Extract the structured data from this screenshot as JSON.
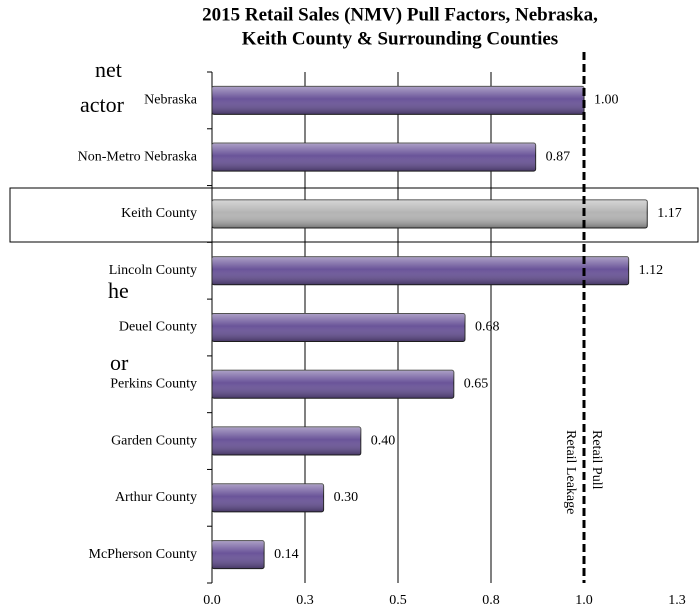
{
  "chart_data": {
    "type": "bar",
    "orientation": "horizontal",
    "title": [
      "2015 Retail Sales (NMV) Pull Factors, Nebraska,",
      "Keith County & Surrounding Counties"
    ],
    "categories": [
      "Nebraska",
      "Non-Metro Nebraska",
      "Keith County",
      "Lincoln County",
      "Deuel County",
      "Perkins County",
      "Garden County",
      "Arthur County",
      "McPherson County"
    ],
    "values": [
      1.0,
      0.87,
      1.17,
      1.12,
      0.68,
      0.65,
      0.4,
      0.3,
      0.14
    ],
    "value_labels": [
      "1.00",
      "0.87",
      "1.17",
      "1.12",
      "0.68",
      "0.65",
      "0.40",
      "0.30",
      "0.14"
    ],
    "colors": [
      "#6a5499",
      "#6a5499",
      "#b4b4b4",
      "#6a5499",
      "#6a5499",
      "#6a5499",
      "#6a5499",
      "#6a5499",
      "#6a5499"
    ],
    "xlim": [
      0,
      1.25
    ],
    "xticks": [
      {
        "value": 0,
        "label": "0.0"
      },
      {
        "value": 0.25,
        "label": "0.3"
      },
      0.5,
      {
        "value": 0.75,
        "label": "0.8"
      },
      {
        "value": 1,
        "label": "1.0"
      },
      {
        "value": 1.25,
        "label": "1.3"
      }
    ],
    "grid": true,
    "reference_line": {
      "value": 1,
      "labels": [
        "Retail Leakage",
        "Retail Pull"
      ]
    }
  },
  "background_text": [
    "net",
    "actor",
    "he",
    "or"
  ]
}
